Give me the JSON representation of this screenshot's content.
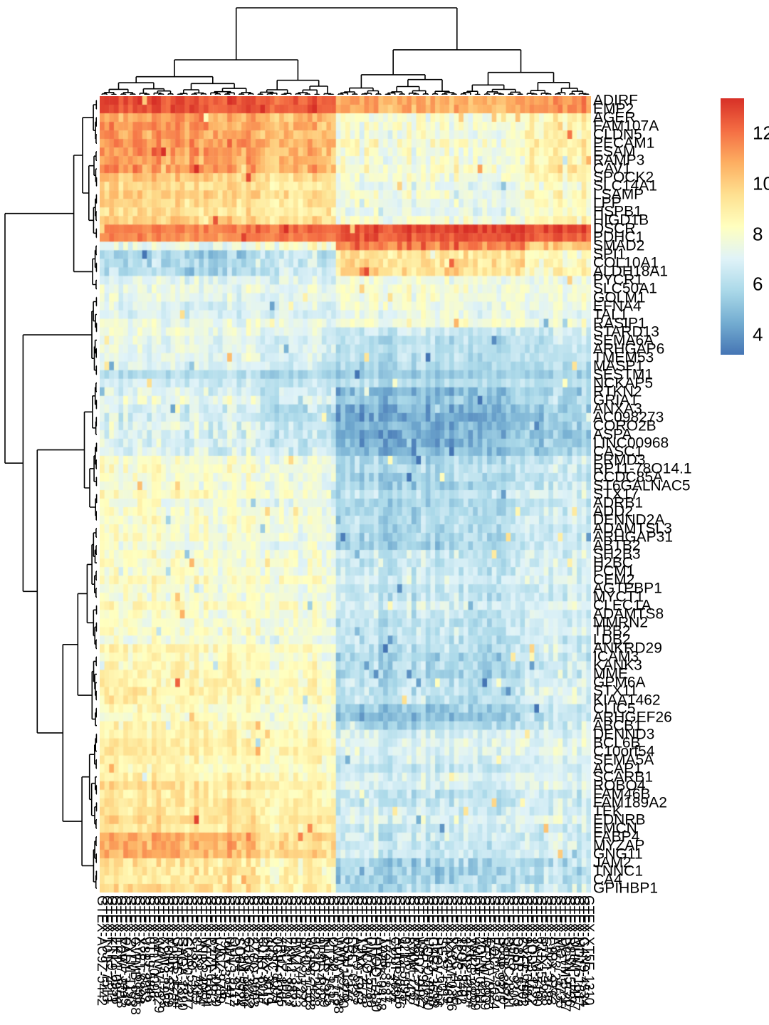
{
  "figure": {
    "kind": "clustered-heatmap",
    "background": "#ffffff",
    "note": "Hierarchically clustered gene-expression heatmap with top (samples) and left (genes) dendrograms, gene labels on the right, rotated sample labels at the bottom (illegible due to overlap), and a color-key on the upper right."
  },
  "legend": {
    "tick_labels": [
      "12",
      "10",
      "8",
      "6",
      "4"
    ],
    "tick_values": [
      12,
      10,
      8,
      6,
      4
    ],
    "domain_min": 3.2,
    "domain_max": 13.4
  },
  "chart_data": {
    "type": "heatmap",
    "title": "",
    "xlabel": "",
    "ylabel": "",
    "n_rows": 93,
    "n_cols": 104,
    "value_domain": [
      3.2,
      13.4
    ],
    "colormap_name": "RdYlBu (reversed: blue=low, red=high)",
    "colormap_stops_low_to_high": [
      "#4575b4",
      "#74add1",
      "#abd9e9",
      "#e0f3f8",
      "#ffffbf",
      "#fee090",
      "#fdae61",
      "#f46d43",
      "#d73027"
    ],
    "row_labels": [
      "ADIRF",
      "EMP2",
      "AGER",
      "FAM107A",
      "CLDN5",
      "PECAM1",
      "ESAM",
      "RAMP3",
      "CAV1",
      "SPOCK2",
      "SLC14A1",
      "LSAMP",
      "LPP",
      "HSPB1",
      "HIGD1B",
      "DSCR",
      "PDHC1",
      "SMAD2",
      "SPI1",
      "COL10A1",
      "ALDH18A1",
      "PYCR1",
      "SLC50A1",
      "GOLM1",
      "EFNA4",
      "TAL1",
      "RASIP1",
      "STARD13",
      "SEMA6A",
      "ARHGAP6",
      "TMEM53",
      "MASP1",
      "SESTM1",
      "NCKAP5",
      "RTKN2",
      "GRIA1",
      "ANXA3",
      "AC098273",
      "CORO2B",
      "ASPA",
      "LINC00968",
      "CASC1",
      "PRMD3",
      "RP11-78O14.1",
      "CCDC85A",
      "ST6GALNAC5",
      "STX17",
      "ADRB1",
      "ADD2",
      "DENND2A",
      "ADAMTSL3",
      "ARHGAP31",
      "ABTB2",
      "SH2B3",
      "H2BC",
      "PCM1",
      "CEM2",
      "AGTPBP1",
      "MYCT1",
      "CLEC1A",
      "ADAMTS8",
      "MMRN2",
      "TBB2",
      "LDB2",
      "ANKRD29",
      "ICAM3",
      "KANK3",
      "MME",
      "GPM6A",
      "STX11",
      "KIAA1462",
      "CLIC5",
      "ARHGEF26",
      "ABCB1",
      "DENND3",
      "BCL6B",
      "C10orf54",
      "SEMA5A",
      "ACAP1",
      "SCARB1",
      "ROBO4",
      "FAM46B",
      "FAM189A2",
      "TEK",
      "EDNRB",
      "EMCN",
      "FABP4",
      "MYZAP",
      "GNG11",
      "JAM2",
      "TNNC1",
      "CA4",
      "GPIHBP1"
    ],
    "column_labels": {
      "note": "~104 sample IDs rotated 90 degrees; completely overlapping and illegible in the source image",
      "render_pattern": "GTEX-XXXX-NNNN"
    },
    "column_group_boundaries": [
      0,
      33,
      50,
      76,
      90,
      104
    ],
    "column_group_names": [
      "left-warm",
      "left-mid",
      "right-blue",
      "right-dark-blue",
      "right-edge"
    ],
    "row_bands": [
      {
        "rows": [
          0,
          2
        ],
        "group_means": [
          12.6,
          12.2,
          10.6,
          10.4,
          11.2
        ],
        "noise": 0.5
      },
      {
        "rows": [
          2,
          9
        ],
        "group_means": [
          11.3,
          10.7,
          8.0,
          7.8,
          9.0
        ],
        "noise": 0.8
      },
      {
        "rows": [
          9,
          15
        ],
        "group_means": [
          9.8,
          9.3,
          7.5,
          7.3,
          8.3
        ],
        "noise": 0.7
      },
      {
        "rows": [
          15,
          17
        ],
        "group_means": [
          11.9,
          12.3,
          12.9,
          13.1,
          12.9
        ],
        "noise": 0.4
      },
      {
        "rows": [
          17,
          18
        ],
        "group_means": [
          7.3,
          7.9,
          11.7,
          11.1,
          10.1
        ],
        "noise": 0.9
      },
      {
        "rows": [
          18,
          21
        ],
        "group_means": [
          5.6,
          6.3,
          9.3,
          9.0,
          8.2
        ],
        "noise": 0.8
      },
      {
        "rows": [
          21,
          27
        ],
        "group_means": [
          7.4,
          7.3,
          7.8,
          7.6,
          7.6
        ],
        "noise": 0.6
      },
      {
        "rows": [
          27,
          32
        ],
        "group_means": [
          7.5,
          7.1,
          6.3,
          6.1,
          6.5
        ],
        "noise": 0.6
      },
      {
        "rows": [
          32,
          34
        ],
        "group_means": [
          6.3,
          6.0,
          5.6,
          5.6,
          5.8
        ],
        "noise": 0.4
      },
      {
        "rows": [
          34,
          42
        ],
        "group_means": [
          7.1,
          6.5,
          4.7,
          4.9,
          5.6
        ],
        "noise": 0.8
      },
      {
        "rows": [
          42,
          53
        ],
        "group_means": [
          8.0,
          7.6,
          5.7,
          5.9,
          6.6
        ],
        "noise": 0.7
      },
      {
        "rows": [
          53,
          64
        ],
        "group_means": [
          8.2,
          8.0,
          6.6,
          6.4,
          7.0
        ],
        "noise": 0.7
      },
      {
        "rows": [
          64,
          71
        ],
        "group_means": [
          8.6,
          8.2,
          6.0,
          5.7,
          6.8
        ],
        "noise": 0.8
      },
      {
        "rows": [
          71,
          74
        ],
        "group_means": [
          8.4,
          8.0,
          5.3,
          5.5,
          6.5
        ],
        "noise": 0.7
      },
      {
        "rows": [
          74,
          80
        ],
        "group_means": [
          8.8,
          8.4,
          6.8,
          6.8,
          7.0
        ],
        "noise": 0.6
      },
      {
        "rows": [
          80,
          86
        ],
        "group_means": [
          9.3,
          8.8,
          6.6,
          6.4,
          6.8
        ],
        "noise": 0.7
      },
      {
        "rows": [
          86,
          89
        ],
        "group_means": [
          10.5,
          9.5,
          6.3,
          6.1,
          6.6
        ],
        "noise": 0.8
      },
      {
        "rows": [
          89,
          93
        ],
        "group_means": [
          9.6,
          9.0,
          5.9,
          6.1,
          6.5
        ],
        "noise": 0.9
      }
    ],
    "dendrograms": {
      "top": {
        "leaves": 104,
        "forced_splits": {
          "0,104": 50,
          "0,50": 33,
          "50,104": 76,
          "76,104": 90,
          "0,33": 16,
          "33,50": 41
        }
      },
      "left": {
        "leaves": 93,
        "forced_splits": {
          "0,93": 23,
          "0,23": 17,
          "23,93": 33,
          "33,93": 50
        }
      }
    },
    "legend_position": "right",
    "grid": false
  }
}
